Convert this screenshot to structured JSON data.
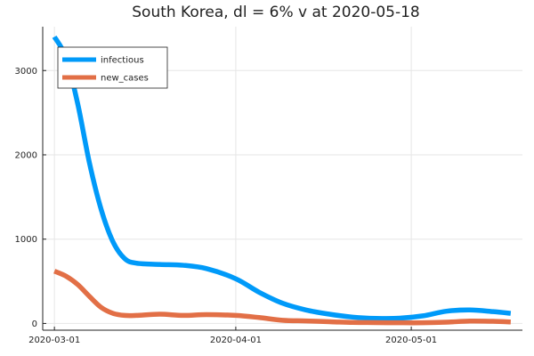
{
  "chart_data": {
    "type": "line",
    "title": "South Korea,  dl = 6% v at 2020-05-18",
    "xlabel": "",
    "ylabel": "",
    "x_start": "2020-03-01",
    "x_end": "2020-05-18",
    "xlim": [
      "2020-02-28",
      "2020-05-20"
    ],
    "ylim": [
      -80,
      3520
    ],
    "x_ticks": [
      {
        "date": "2020-03-01",
        "label": "2020-03-01"
      },
      {
        "date": "2020-04-01",
        "label": "2020-04-01"
      },
      {
        "date": "2020-05-01",
        "label": "2020-05-01"
      }
    ],
    "y_ticks": [
      {
        "value": 0,
        "label": "0"
      },
      {
        "value": 1000,
        "label": "1000"
      },
      {
        "value": 2000,
        "label": "2000"
      },
      {
        "value": 3000,
        "label": "3000"
      }
    ],
    "grid": true,
    "legend_position": "top-left",
    "series": [
      {
        "name": "infectious",
        "color": "#009af9",
        "points": [
          {
            "x": "2020-03-01",
            "y": 3400
          },
          {
            "x": "2020-03-03",
            "y": 3150
          },
          {
            "x": "2020-03-05",
            "y": 2600
          },
          {
            "x": "2020-03-07",
            "y": 1900
          },
          {
            "x": "2020-03-09",
            "y": 1350
          },
          {
            "x": "2020-03-11",
            "y": 970
          },
          {
            "x": "2020-03-13",
            "y": 770
          },
          {
            "x": "2020-03-15",
            "y": 715
          },
          {
            "x": "2020-03-19",
            "y": 700
          },
          {
            "x": "2020-03-23",
            "y": 690
          },
          {
            "x": "2020-03-27",
            "y": 650
          },
          {
            "x": "2020-04-01",
            "y": 530
          },
          {
            "x": "2020-04-05",
            "y": 370
          },
          {
            "x": "2020-04-09",
            "y": 240
          },
          {
            "x": "2020-04-13",
            "y": 160
          },
          {
            "x": "2020-04-17",
            "y": 110
          },
          {
            "x": "2020-04-21",
            "y": 75
          },
          {
            "x": "2020-04-25",
            "y": 60
          },
          {
            "x": "2020-04-29",
            "y": 62
          },
          {
            "x": "2020-05-03",
            "y": 90
          },
          {
            "x": "2020-05-07",
            "y": 145
          },
          {
            "x": "2020-05-11",
            "y": 160
          },
          {
            "x": "2020-05-15",
            "y": 140
          },
          {
            "x": "2020-05-18",
            "y": 120
          }
        ]
      },
      {
        "name": "new_cases",
        "color": "#e26f46",
        "points": [
          {
            "x": "2020-03-01",
            "y": 620
          },
          {
            "x": "2020-03-03",
            "y": 560
          },
          {
            "x": "2020-03-05",
            "y": 460
          },
          {
            "x": "2020-03-07",
            "y": 320
          },
          {
            "x": "2020-03-09",
            "y": 190
          },
          {
            "x": "2020-03-11",
            "y": 120
          },
          {
            "x": "2020-03-13",
            "y": 95
          },
          {
            "x": "2020-03-15",
            "y": 95
          },
          {
            "x": "2020-03-19",
            "y": 110
          },
          {
            "x": "2020-03-23",
            "y": 95
          },
          {
            "x": "2020-03-27",
            "y": 105
          },
          {
            "x": "2020-04-01",
            "y": 95
          },
          {
            "x": "2020-04-05",
            "y": 70
          },
          {
            "x": "2020-04-09",
            "y": 38
          },
          {
            "x": "2020-04-13",
            "y": 30
          },
          {
            "x": "2020-04-17",
            "y": 20
          },
          {
            "x": "2020-04-21",
            "y": 12
          },
          {
            "x": "2020-04-25",
            "y": 10
          },
          {
            "x": "2020-04-29",
            "y": 8
          },
          {
            "x": "2020-05-03",
            "y": 8
          },
          {
            "x": "2020-05-07",
            "y": 15
          },
          {
            "x": "2020-05-11",
            "y": 28
          },
          {
            "x": "2020-05-15",
            "y": 25
          },
          {
            "x": "2020-05-18",
            "y": 18
          }
        ]
      }
    ]
  }
}
